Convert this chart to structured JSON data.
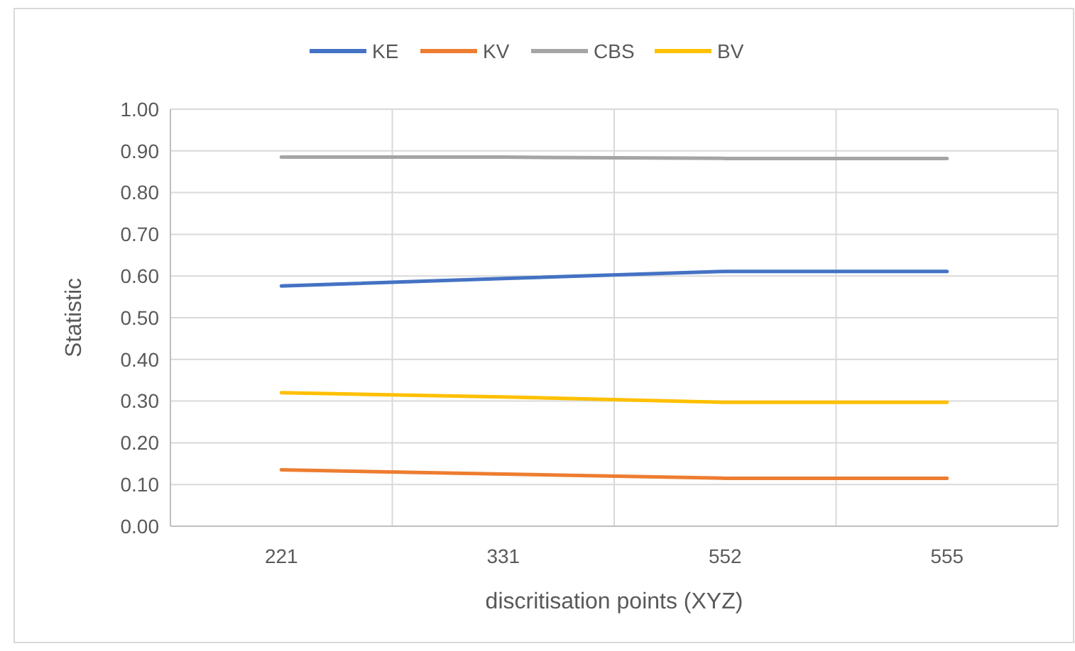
{
  "chart_data": {
    "type": "line",
    "xlabel": "discritisation points (XYZ)",
    "ylabel": "Statistic",
    "categories": [
      "221",
      "331",
      "552",
      "555"
    ],
    "series": [
      {
        "name": "KE",
        "color": "#4472c4",
        "values": [
          0.576,
          0.594,
          0.611,
          0.611
        ]
      },
      {
        "name": "KV",
        "color": "#ed7d31",
        "values": [
          0.135,
          0.125,
          0.115,
          0.115
        ]
      },
      {
        "name": "CBS",
        "color": "#a5a5a5",
        "values": [
          0.885,
          0.885,
          0.882,
          0.882
        ]
      },
      {
        "name": "BV",
        "color": "#ffc000",
        "values": [
          0.32,
          0.31,
          0.297,
          0.297
        ]
      }
    ],
    "ylim": [
      0,
      1
    ],
    "yticks": [
      {
        "value": 0,
        "label": "0.00"
      },
      {
        "value": 0.1,
        "label": "0.10"
      },
      {
        "value": 0.2,
        "label": "0.20"
      },
      {
        "value": 0.3,
        "label": "0.30"
      },
      {
        "value": 0.4,
        "label": "0.40"
      },
      {
        "value": 0.5,
        "label": "0.50"
      },
      {
        "value": 0.6,
        "label": "0.60"
      },
      {
        "value": 0.7,
        "label": "0.70"
      },
      {
        "value": 0.8,
        "label": "0.80"
      },
      {
        "value": 0.9,
        "label": "0.90"
      },
      {
        "value": 1,
        "label": "1.00"
      }
    ],
    "grid": true,
    "legend": "top",
    "marker": "none",
    "line_style": "solid"
  }
}
